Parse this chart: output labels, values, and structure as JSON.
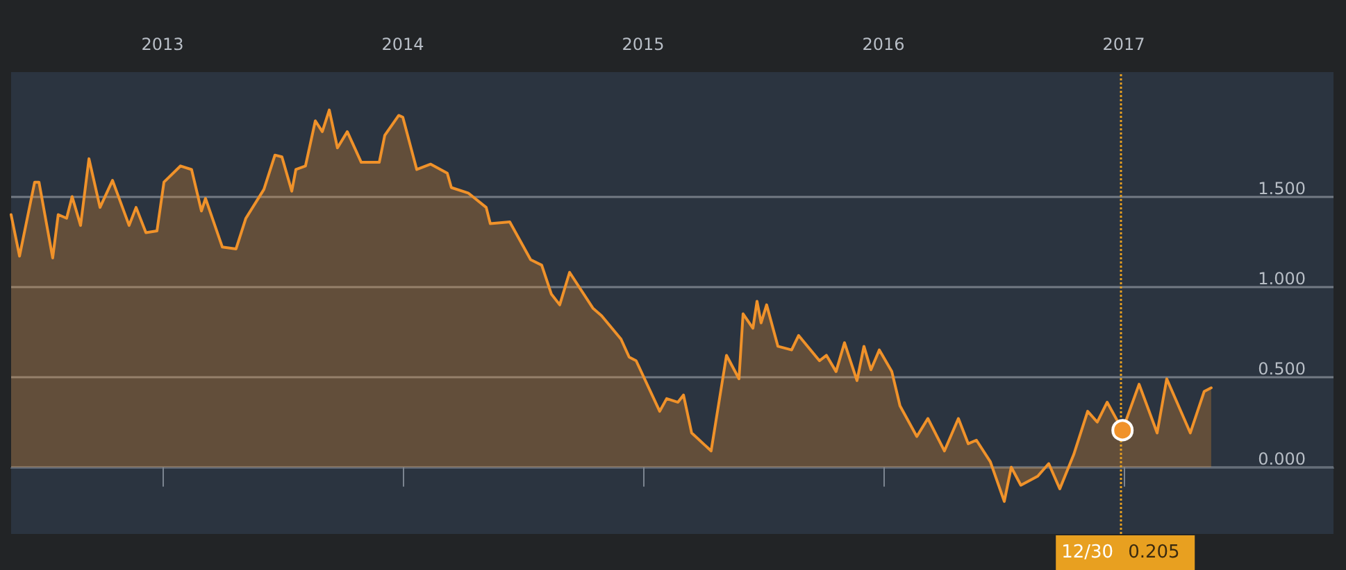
{
  "chart_data": {
    "type": "area",
    "x": [
      2012.37,
      2012.405,
      2012.468,
      2012.486,
      2012.543,
      2012.566,
      2012.601,
      2012.624,
      2012.659,
      2012.694,
      2012.74,
      2012.792,
      2012.861,
      2012.89,
      2012.931,
      2012.977,
      2013.006,
      2013.075,
      2013.121,
      2013.162,
      2013.179,
      2013.249,
      2013.306,
      2013.347,
      2013.422,
      2013.468,
      2013.497,
      2013.538,
      2013.555,
      2013.595,
      2013.636,
      2013.665,
      2013.694,
      2013.728,
      2013.769,
      2013.827,
      2013.902,
      2013.925,
      2013.983,
      2014.0,
      2014.058,
      2014.116,
      2014.185,
      2014.202,
      2014.272,
      2014.347,
      2014.364,
      2014.445,
      2014.532,
      2014.578,
      2014.618,
      2014.653,
      2014.694,
      2014.792,
      2014.827,
      2014.908,
      2014.942,
      2014.971,
      2015.069,
      2015.098,
      2015.145,
      2015.168,
      2015.202,
      2015.283,
      2015.347,
      2015.399,
      2015.416,
      2015.457,
      2015.474,
      2015.491,
      2015.514,
      2015.561,
      2015.618,
      2015.647,
      2015.734,
      2015.763,
      2015.803,
      2015.838,
      2015.89,
      2015.919,
      2015.948,
      2015.983,
      2016.035,
      2016.069,
      2016.139,
      2016.185,
      2016.254,
      2016.312,
      2016.353,
      2016.387,
      2016.445,
      2016.503,
      2016.532,
      2016.572,
      2016.642,
      2016.688,
      2016.734,
      2016.792,
      2016.85,
      2016.89,
      2016.931,
      2016.995,
      2017.064,
      2017.139,
      2017.179,
      2017.277,
      2017.335,
      2017.364
    ],
    "series": [
      {
        "color": "#f0922a",
        "values": [
          1.4,
          1.17,
          1.58,
          1.58,
          1.16,
          1.4,
          1.38,
          1.5,
          1.34,
          1.71,
          1.44,
          1.59,
          1.34,
          1.44,
          1.3,
          1.31,
          1.58,
          1.67,
          1.65,
          1.42,
          1.49,
          1.22,
          1.21,
          1.38,
          1.54,
          1.73,
          1.72,
          1.53,
          1.65,
          1.67,
          1.92,
          1.86,
          1.98,
          1.77,
          1.86,
          1.69,
          1.69,
          1.84,
          1.95,
          1.94,
          1.65,
          1.68,
          1.63,
          1.55,
          1.52,
          1.44,
          1.35,
          1.36,
          1.15,
          1.12,
          0.96,
          0.9,
          1.08,
          0.88,
          0.84,
          0.71,
          0.61,
          0.59,
          0.31,
          0.38,
          0.36,
          0.4,
          0.19,
          0.09,
          0.62,
          0.49,
          0.85,
          0.77,
          0.92,
          0.8,
          0.9,
          0.67,
          0.65,
          0.73,
          0.59,
          0.62,
          0.53,
          0.69,
          0.48,
          0.67,
          0.54,
          0.65,
          0.53,
          0.34,
          0.17,
          0.27,
          0.09,
          0.27,
          0.13,
          0.15,
          0.03,
          -0.19,
          0.0,
          -0.1,
          -0.05,
          0.02,
          -0.12,
          0.07,
          0.31,
          0.25,
          0.36,
          0.205,
          0.46,
          0.19,
          0.49,
          0.19,
          0.42,
          0.44
        ]
      }
    ],
    "xlim": [
      2012.37,
      2017.873
    ],
    "xticks": [
      2013,
      2014,
      2015,
      2016,
      2017
    ],
    "ylim": [
      -0.37,
      2.19
    ],
    "yticks": [
      {
        "value": 0,
        "label": "0.000"
      },
      {
        "value": 0.5,
        "label": "0.500"
      },
      {
        "value": 1,
        "label": "1.000"
      },
      {
        "value": 1.5,
        "label": "1.500"
      }
    ],
    "grid": "y",
    "marker": "none",
    "line_style": "solid",
    "ref_lines": [
      {
        "axis": "x",
        "value": 2016.995,
        "color": "#e8a020",
        "line_style": "dotted"
      }
    ],
    "annotations": [
      "12/30",
      "0.205"
    ]
  }
}
